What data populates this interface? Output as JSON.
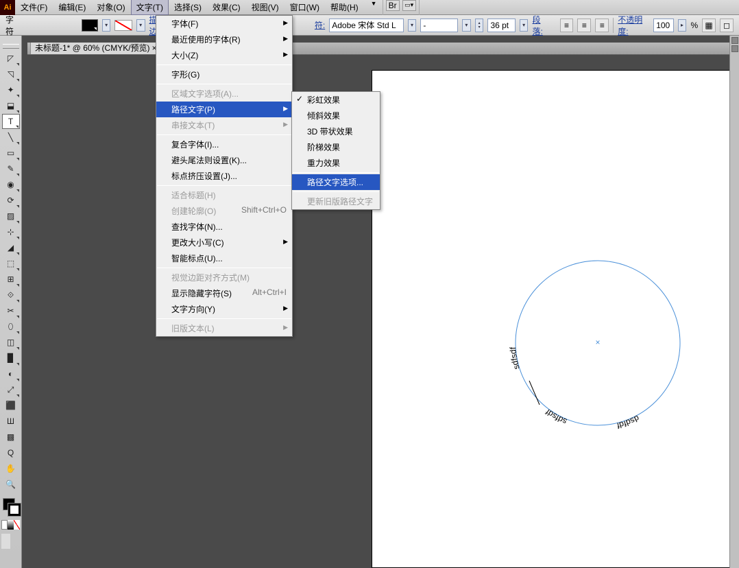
{
  "menubar": {
    "items": [
      "文件(F)",
      "编辑(E)",
      "对象(O)",
      "文字(T)",
      "选择(S)",
      "效果(C)",
      "视图(V)",
      "窗口(W)",
      "帮助(H)"
    ],
    "active_index": 3,
    "br_label": "Br"
  },
  "optbar": {
    "char_label": "字符",
    "stroke_label": "描边",
    "char2_label": "符:",
    "font_name": "Adobe 宋体 Std L",
    "font_style": "-",
    "size_value": "36 pt",
    "para_label": "段落:",
    "opacity_label": "不透明度:",
    "opacity_value": "100",
    "pct": "%"
  },
  "tab": {
    "title": "未标题-1* @ 60% (CMYK/预览)"
  },
  "dropdown": {
    "items": [
      {
        "t": "字体(F)",
        "sub": true
      },
      {
        "t": "最近使用的字体(R)",
        "sub": true
      },
      {
        "t": "大小(Z)",
        "sub": true
      },
      {
        "sep": true
      },
      {
        "t": "字形(G)"
      },
      {
        "sep": true
      },
      {
        "t": "区域文字选项(A)...",
        "dis": true
      },
      {
        "t": "路径文字(P)",
        "sub": true,
        "hl": true
      },
      {
        "t": "串接文本(T)",
        "sub": true,
        "dis": true
      },
      {
        "sep": true
      },
      {
        "t": "复合字体(I)..."
      },
      {
        "t": "避头尾法则设置(K)..."
      },
      {
        "t": "标点挤压设置(J)..."
      },
      {
        "sep": true
      },
      {
        "t": "适合标题(H)",
        "dis": true
      },
      {
        "t": "创建轮廓(O)",
        "dis": true,
        "sc": "Shift+Ctrl+O"
      },
      {
        "t": "查找字体(N)..."
      },
      {
        "t": "更改大小写(C)",
        "sub": true
      },
      {
        "t": "智能标点(U)..."
      },
      {
        "sep": true
      },
      {
        "t": "视觉边距对齐方式(M)",
        "dis": true
      },
      {
        "t": "显示隐藏字符(S)",
        "sc": "Alt+Ctrl+I"
      },
      {
        "t": "文字方向(Y)",
        "sub": true
      },
      {
        "sep": true
      },
      {
        "t": "旧版文本(L)",
        "sub": true,
        "dis": true
      }
    ]
  },
  "submenu": {
    "items": [
      {
        "t": "彩虹效果",
        "chk": true
      },
      {
        "t": "倾斜效果"
      },
      {
        "t": "3D 带状效果"
      },
      {
        "t": "阶梯效果"
      },
      {
        "t": "重力效果"
      },
      {
        "sep": true
      },
      {
        "t": "路径文字选项...",
        "hl": true
      },
      {
        "sep": true
      },
      {
        "t": "更新旧版路径文字",
        "dis": true
      }
    ]
  },
  "canvas": {
    "text1": "dsdfdf",
    "text2": "sdfsdf",
    "text3": "sdfsdf",
    "circle_color": "#4a90d9",
    "text_font": "Palatino, Georgia, serif",
    "text_size": "18px"
  },
  "tools": {
    "count": 28
  }
}
